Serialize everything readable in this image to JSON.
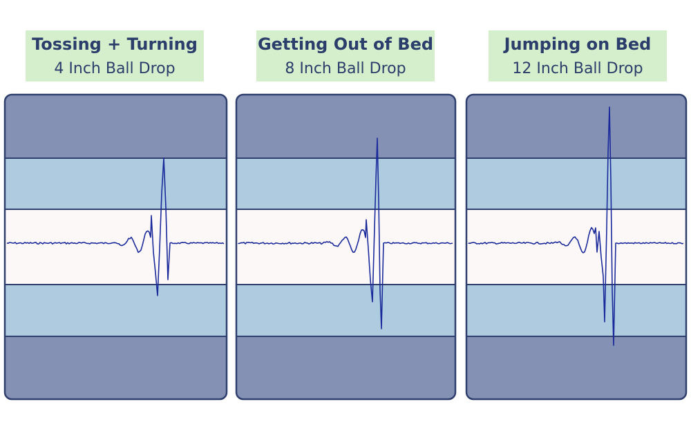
{
  "panels": [
    {
      "title": "Tossing + Turning",
      "subtitle": "4 Inch Ball Drop"
    },
    {
      "title": "Getting Out of Bed",
      "subtitle": "8 Inch Ball Drop"
    },
    {
      "title": "Jumping on Bed",
      "subtitle": "12 Inch Ball Drop"
    }
  ]
}
